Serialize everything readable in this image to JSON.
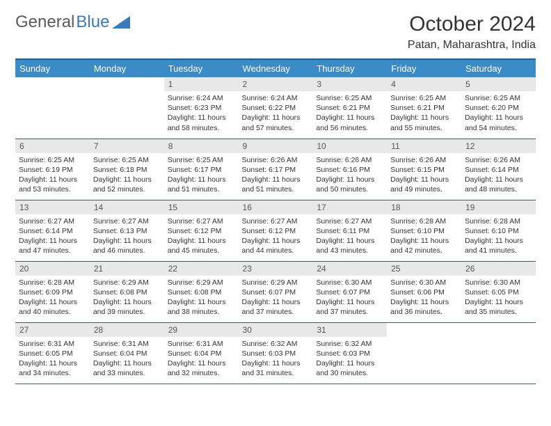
{
  "logo": {
    "text1": "General",
    "text2": "Blue"
  },
  "title": "October 2024",
  "location": "Patan, Maharashtra, India",
  "colors": {
    "header_bg": "#3b8bc6",
    "header_border": "#2a5a85",
    "daynum_bg": "#e8e8e8",
    "text": "#333333",
    "logo_gray": "#5a5a5a",
    "logo_blue": "#3a7ab8"
  },
  "fonts": {
    "title_size": 30,
    "location_size": 16,
    "dayheader_size": 13,
    "daynum_size": 12,
    "body_size": 10.5
  },
  "day_headers": [
    "Sunday",
    "Monday",
    "Tuesday",
    "Wednesday",
    "Thursday",
    "Friday",
    "Saturday"
  ],
  "weeks": [
    [
      {
        "empty": true
      },
      {
        "empty": true
      },
      {
        "num": "1",
        "sunrise": "Sunrise: 6:24 AM",
        "sunset": "Sunset: 6:23 PM",
        "daylight": "Daylight: 11 hours and 58 minutes."
      },
      {
        "num": "2",
        "sunrise": "Sunrise: 6:24 AM",
        "sunset": "Sunset: 6:22 PM",
        "daylight": "Daylight: 11 hours and 57 minutes."
      },
      {
        "num": "3",
        "sunrise": "Sunrise: 6:25 AM",
        "sunset": "Sunset: 6:21 PM",
        "daylight": "Daylight: 11 hours and 56 minutes."
      },
      {
        "num": "4",
        "sunrise": "Sunrise: 6:25 AM",
        "sunset": "Sunset: 6:21 PM",
        "daylight": "Daylight: 11 hours and 55 minutes."
      },
      {
        "num": "5",
        "sunrise": "Sunrise: 6:25 AM",
        "sunset": "Sunset: 6:20 PM",
        "daylight": "Daylight: 11 hours and 54 minutes."
      }
    ],
    [
      {
        "num": "6",
        "sunrise": "Sunrise: 6:25 AM",
        "sunset": "Sunset: 6:19 PM",
        "daylight": "Daylight: 11 hours and 53 minutes."
      },
      {
        "num": "7",
        "sunrise": "Sunrise: 6:25 AM",
        "sunset": "Sunset: 6:18 PM",
        "daylight": "Daylight: 11 hours and 52 minutes."
      },
      {
        "num": "8",
        "sunrise": "Sunrise: 6:25 AM",
        "sunset": "Sunset: 6:17 PM",
        "daylight": "Daylight: 11 hours and 51 minutes."
      },
      {
        "num": "9",
        "sunrise": "Sunrise: 6:26 AM",
        "sunset": "Sunset: 6:17 PM",
        "daylight": "Daylight: 11 hours and 51 minutes."
      },
      {
        "num": "10",
        "sunrise": "Sunrise: 6:26 AM",
        "sunset": "Sunset: 6:16 PM",
        "daylight": "Daylight: 11 hours and 50 minutes."
      },
      {
        "num": "11",
        "sunrise": "Sunrise: 6:26 AM",
        "sunset": "Sunset: 6:15 PM",
        "daylight": "Daylight: 11 hours and 49 minutes."
      },
      {
        "num": "12",
        "sunrise": "Sunrise: 6:26 AM",
        "sunset": "Sunset: 6:14 PM",
        "daylight": "Daylight: 11 hours and 48 minutes."
      }
    ],
    [
      {
        "num": "13",
        "sunrise": "Sunrise: 6:27 AM",
        "sunset": "Sunset: 6:14 PM",
        "daylight": "Daylight: 11 hours and 47 minutes."
      },
      {
        "num": "14",
        "sunrise": "Sunrise: 6:27 AM",
        "sunset": "Sunset: 6:13 PM",
        "daylight": "Daylight: 11 hours and 46 minutes."
      },
      {
        "num": "15",
        "sunrise": "Sunrise: 6:27 AM",
        "sunset": "Sunset: 6:12 PM",
        "daylight": "Daylight: 11 hours and 45 minutes."
      },
      {
        "num": "16",
        "sunrise": "Sunrise: 6:27 AM",
        "sunset": "Sunset: 6:12 PM",
        "daylight": "Daylight: 11 hours and 44 minutes."
      },
      {
        "num": "17",
        "sunrise": "Sunrise: 6:27 AM",
        "sunset": "Sunset: 6:11 PM",
        "daylight": "Daylight: 11 hours and 43 minutes."
      },
      {
        "num": "18",
        "sunrise": "Sunrise: 6:28 AM",
        "sunset": "Sunset: 6:10 PM",
        "daylight": "Daylight: 11 hours and 42 minutes."
      },
      {
        "num": "19",
        "sunrise": "Sunrise: 6:28 AM",
        "sunset": "Sunset: 6:10 PM",
        "daylight": "Daylight: 11 hours and 41 minutes."
      }
    ],
    [
      {
        "num": "20",
        "sunrise": "Sunrise: 6:28 AM",
        "sunset": "Sunset: 6:09 PM",
        "daylight": "Daylight: 11 hours and 40 minutes."
      },
      {
        "num": "21",
        "sunrise": "Sunrise: 6:29 AM",
        "sunset": "Sunset: 6:08 PM",
        "daylight": "Daylight: 11 hours and 39 minutes."
      },
      {
        "num": "22",
        "sunrise": "Sunrise: 6:29 AM",
        "sunset": "Sunset: 6:08 PM",
        "daylight": "Daylight: 11 hours and 38 minutes."
      },
      {
        "num": "23",
        "sunrise": "Sunrise: 6:29 AM",
        "sunset": "Sunset: 6:07 PM",
        "daylight": "Daylight: 11 hours and 37 minutes."
      },
      {
        "num": "24",
        "sunrise": "Sunrise: 6:30 AM",
        "sunset": "Sunset: 6:07 PM",
        "daylight": "Daylight: 11 hours and 37 minutes."
      },
      {
        "num": "25",
        "sunrise": "Sunrise: 6:30 AM",
        "sunset": "Sunset: 6:06 PM",
        "daylight": "Daylight: 11 hours and 36 minutes."
      },
      {
        "num": "26",
        "sunrise": "Sunrise: 6:30 AM",
        "sunset": "Sunset: 6:05 PM",
        "daylight": "Daylight: 11 hours and 35 minutes."
      }
    ],
    [
      {
        "num": "27",
        "sunrise": "Sunrise: 6:31 AM",
        "sunset": "Sunset: 6:05 PM",
        "daylight": "Daylight: 11 hours and 34 minutes."
      },
      {
        "num": "28",
        "sunrise": "Sunrise: 6:31 AM",
        "sunset": "Sunset: 6:04 PM",
        "daylight": "Daylight: 11 hours and 33 minutes."
      },
      {
        "num": "29",
        "sunrise": "Sunrise: 6:31 AM",
        "sunset": "Sunset: 6:04 PM",
        "daylight": "Daylight: 11 hours and 32 minutes."
      },
      {
        "num": "30",
        "sunrise": "Sunrise: 6:32 AM",
        "sunset": "Sunset: 6:03 PM",
        "daylight": "Daylight: 11 hours and 31 minutes."
      },
      {
        "num": "31",
        "sunrise": "Sunrise: 6:32 AM",
        "sunset": "Sunset: 6:03 PM",
        "daylight": "Daylight: 11 hours and 30 minutes."
      },
      {
        "empty": true
      },
      {
        "empty": true
      }
    ]
  ]
}
